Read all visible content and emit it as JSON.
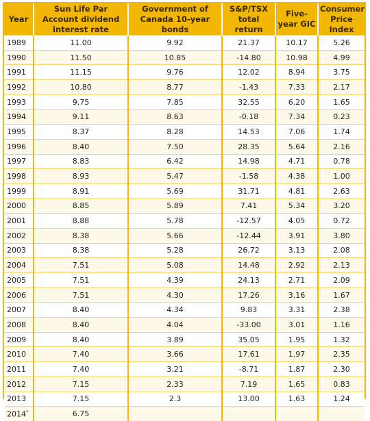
{
  "table": {
    "headers": [
      "Year",
      "Sun Life Par Account dividend interest rate",
      "Government of Canada 10-year bonds",
      "S&P/TSX total return",
      "Five-year GIC",
      "Consumer Price Index"
    ],
    "rows": [
      [
        "1989",
        "11.00",
        "9.92",
        "21.37",
        "10.17",
        "5.26"
      ],
      [
        "1990",
        "11.50",
        "10.85",
        "-14.80",
        "10.98",
        "4.99"
      ],
      [
        "1991",
        "11.15",
        "9.76",
        "12.02",
        "8.94",
        "3.75"
      ],
      [
        "1992",
        "10.80",
        "8.77",
        "-1.43",
        "7.33",
        "2.17"
      ],
      [
        "1993",
        "9.75",
        "7.85",
        "32.55",
        "6.20",
        "1.65"
      ],
      [
        "1994",
        "9.11",
        "8.63",
        "-0.18",
        "7.34",
        "0.23"
      ],
      [
        "1995",
        "8.37",
        "8.28",
        "14.53",
        "7.06",
        "1.74"
      ],
      [
        "1996",
        "8.40",
        "7.50",
        "28.35",
        "5.64",
        "2.16"
      ],
      [
        "1997",
        "8.83",
        "6.42",
        "14.98",
        "4.71",
        "0.78"
      ],
      [
        "1998",
        "8.93",
        "5.47",
        "-1.58",
        "4.38",
        "1.00"
      ],
      [
        "1999",
        "8.91",
        "5.69",
        "31.71",
        "4.81",
        "2.63"
      ],
      [
        "2000",
        "8.85",
        "5.89",
        "7.41",
        "5.34",
        "3.20"
      ],
      [
        "2001",
        "8.88",
        "5.78",
        "-12.57",
        "4.05",
        "0.72"
      ],
      [
        "2002",
        "8.38",
        "5.66",
        "-12.44",
        "3.91",
        "3.80"
      ],
      [
        "2003",
        "8.38",
        "5.28",
        "26.72",
        "3.13",
        "2.08"
      ],
      [
        "2004",
        "7.51",
        "5.08",
        "14.48",
        "2.92",
        "2.13"
      ],
      [
        "2005",
        "7.51",
        "4.39",
        "24.13",
        "2.71",
        "2.09"
      ],
      [
        "2006",
        "7.51",
        "4.30",
        "17.26",
        "3.16",
        "1.67"
      ],
      [
        "2007",
        "8.40",
        "4.34",
        "9.83",
        "3.31",
        "2.38"
      ],
      [
        "2008",
        "8.40",
        "4.04",
        "-33.00",
        "3.01",
        "1.16"
      ],
      [
        "2009",
        "8.40",
        "3.89",
        "35.05",
        "1.95",
        "1.32"
      ],
      [
        "2010",
        "7.40",
        "3.66",
        "17.61",
        "1.97",
        "2.35"
      ],
      [
        "2011",
        "7.40",
        "3.21",
        "-8.71",
        "1.87",
        "2.30"
      ],
      [
        "2012",
        "7.15",
        "2.33",
        "7.19",
        "1.65",
        "0.83"
      ],
      [
        "2013",
        "7.15",
        "2.3",
        "13.00",
        "1.63",
        "1.24"
      ],
      [
        "2014",
        "6.75",
        "",
        "",
        "",
        ""
      ]
    ],
    "last_row_marker": "*"
  }
}
